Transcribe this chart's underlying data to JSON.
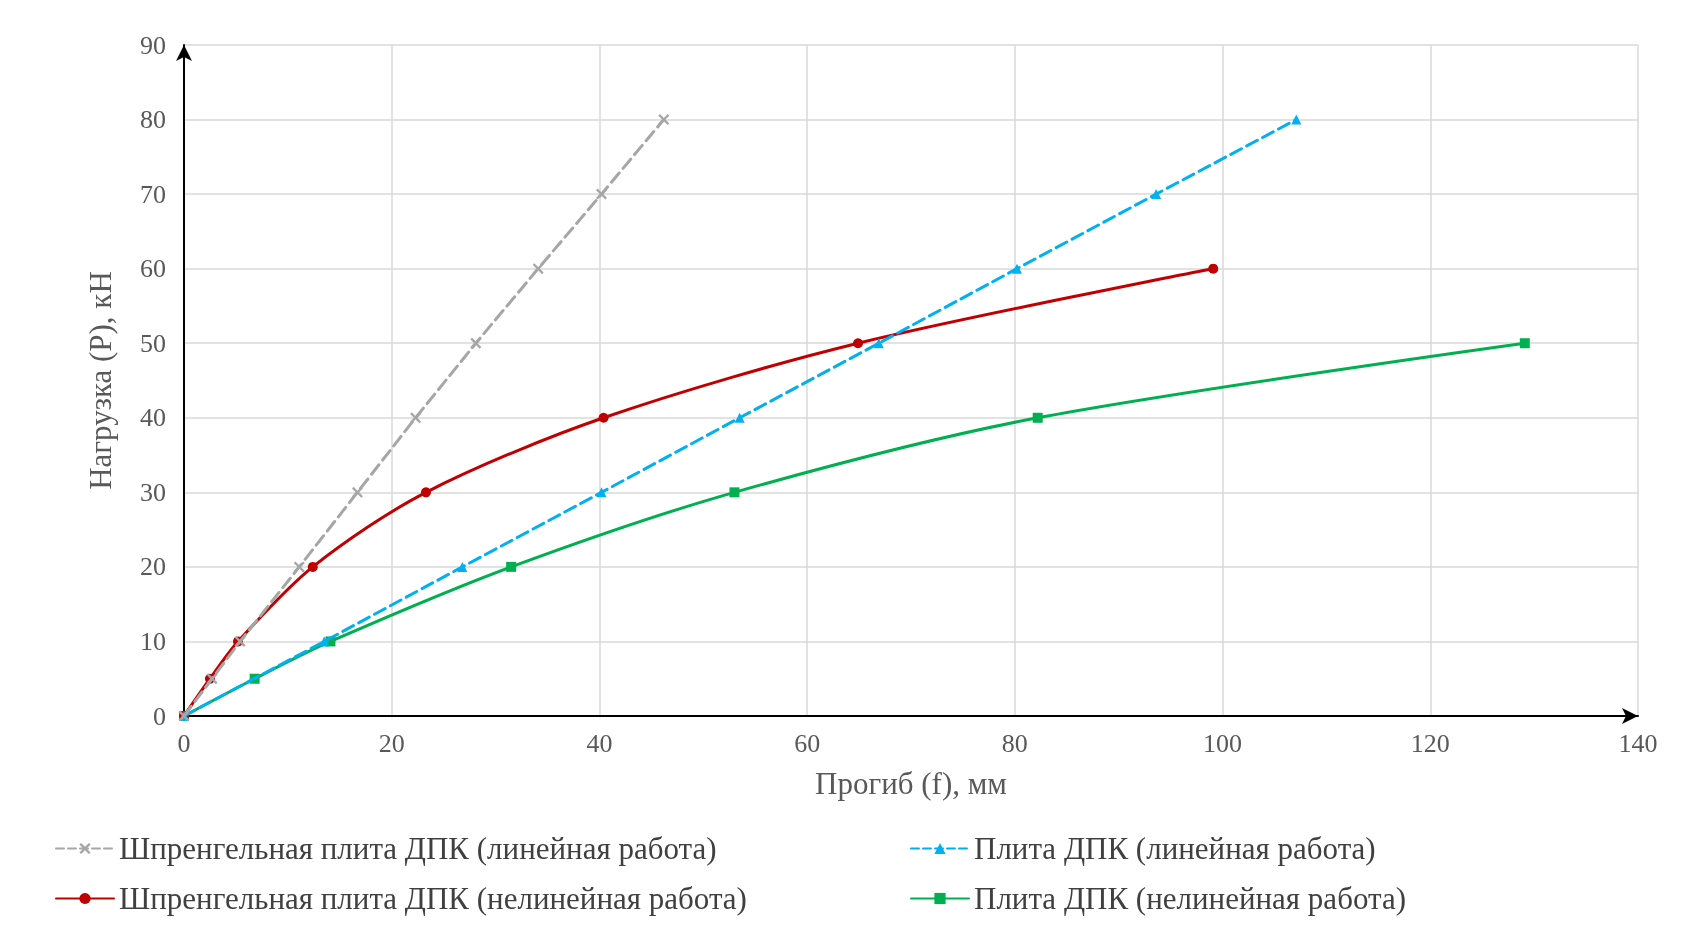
{
  "chart_data": {
    "type": "line",
    "xlabel": "Прогиб (f), мм",
    "ylabel": "Нагрузка (P), кН",
    "xlim": [
      0,
      140
    ],
    "xticks": [
      0,
      20,
      40,
      60,
      80,
      100,
      120,
      140
    ],
    "ylim": [
      0,
      90
    ],
    "yticks": [
      0,
      10,
      20,
      30,
      40,
      50,
      60,
      70,
      80,
      90
    ],
    "grid": true,
    "legend": "bottom",
    "series": [
      {
        "name": "Шпренгельная плита ДПК (линейная работа)",
        "color": "#a6a6a6",
        "marker": "cross",
        "line_style": "dashed",
        "x": [
          0,
          2.7,
          5.4,
          11.1,
          16.7,
          22.3,
          28.1,
          34.1,
          40.2,
          46.2
        ],
        "values": [
          0,
          5,
          10,
          20,
          30,
          40,
          50,
          60,
          70,
          80
        ]
      },
      {
        "name": "Плита ДПК (линейная работа)",
        "color": "#00b0f0",
        "marker": "triangle",
        "line_style": "dashed",
        "x": [
          0,
          13.5,
          26.8,
          40.2,
          53.5,
          66.9,
          80.2,
          93.6,
          107.1
        ],
        "values": [
          0,
          10,
          20,
          30,
          40,
          50,
          60,
          70,
          80
        ]
      },
      {
        "name": "Шпренгельная плита ДПК (нелинейная работа)",
        "color": "#c00000",
        "marker": "circle",
        "line_style": "solid",
        "x": [
          0,
          2.5,
          5.2,
          12.4,
          23.3,
          40.4,
          64.9,
          99.1
        ],
        "values": [
          0,
          5,
          10,
          20,
          30,
          40,
          50,
          60
        ]
      },
      {
        "name": "Плита ДПК (нелинейная работа)",
        "color": "#00b050",
        "marker": "square",
        "line_style": "solid",
        "x": [
          0,
          6.8,
          14.1,
          31.5,
          53.0,
          82.2,
          129.1
        ],
        "values": [
          0,
          5,
          10,
          20,
          30,
          40,
          50
        ]
      }
    ]
  }
}
